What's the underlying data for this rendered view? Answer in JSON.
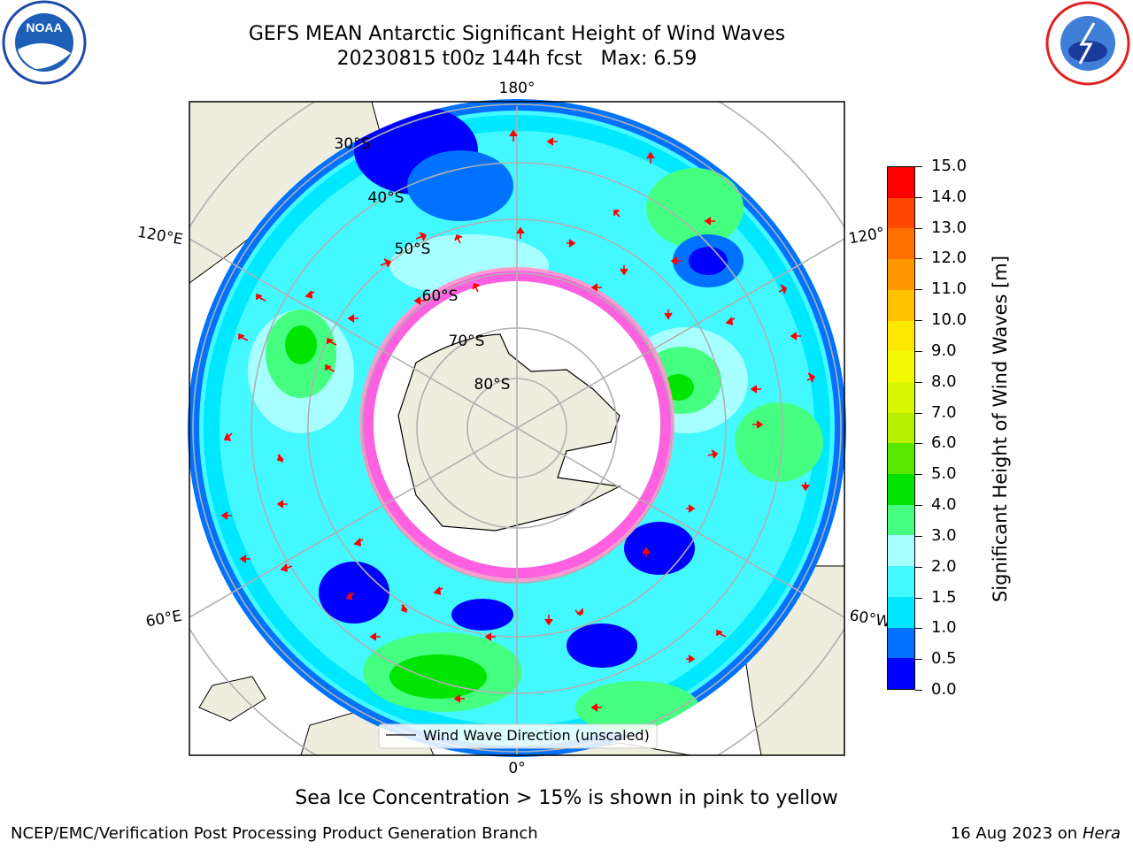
{
  "title": {
    "line1": "GEFS MEAN Antarctic Significant Height of Wind Waves",
    "line2": "20230815 t00z 144h fcst   Max: 6.59"
  },
  "logos": {
    "left": "noaa-logo",
    "right": "nws-logo"
  },
  "map": {
    "longitude_labels": {
      "top": "180°",
      "left_upper": "120°E",
      "right_upper": "120°",
      "left_lower": "60°E",
      "right_lower": "60°W",
      "bottom": "0°"
    },
    "latitude_labels": [
      "30°S",
      "40°S",
      "50°S",
      "60°S",
      "70°S",
      "80°S"
    ],
    "legend": "Wind Wave Direction (unscaled)"
  },
  "colorbar": {
    "label": "Significant Height of Wind Waves [m]",
    "ticks": [
      "0.0",
      "0.5",
      "1.0",
      "1.5",
      "2.0",
      "3.0",
      "4.0",
      "5.0",
      "6.0",
      "7.0",
      "8.0",
      "9.0",
      "10.0",
      "11.0",
      "12.0",
      "13.0",
      "14.0",
      "15.0"
    ],
    "colors": [
      "#0000ff",
      "#0072ff",
      "#00e8ff",
      "#44f8ff",
      "#a8ffff",
      "#44ff80",
      "#00e400",
      "#5ae800",
      "#b8f000",
      "#d8f800",
      "#f4f800",
      "#ffe800",
      "#ffc000",
      "#ff9800",
      "#ff7000",
      "#ff4800",
      "#ff0000"
    ]
  },
  "footer": {
    "note": "Sea Ice Concentration > 15% is shown in pink to yellow",
    "left": "NCEP/EMC/Verification Post Processing Product Generation Branch",
    "right_date": "16 Aug 2023 on",
    "right_machine": "Hera"
  }
}
